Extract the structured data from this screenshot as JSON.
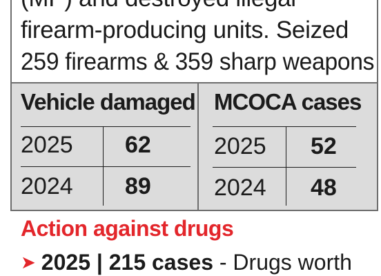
{
  "intro": {
    "lines": [
      "(MP) and destroyed illegal",
      "firearm-producing units. Seized",
      "259 firearms & 359 sharp weapons"
    ]
  },
  "tables": [
    {
      "title": "Vehicle damaged",
      "rows": [
        {
          "year": "2025",
          "value": "62"
        },
        {
          "year": "2024",
          "value": "89"
        }
      ]
    },
    {
      "title": "MCOCA cases",
      "rows": [
        {
          "year": "2025",
          "value": "52"
        },
        {
          "year": "2024",
          "value": "48"
        }
      ]
    }
  ],
  "drugs": {
    "heading": "Action against drugs",
    "year": "2025",
    "separator": "|",
    "cases": "215 cases",
    "rest": " - Drugs worth"
  },
  "colors": {
    "accent_red": "#e3262b",
    "panel_gray": "#dcdcdc"
  },
  "icons": {
    "bullet": "chevron-right-icon"
  }
}
